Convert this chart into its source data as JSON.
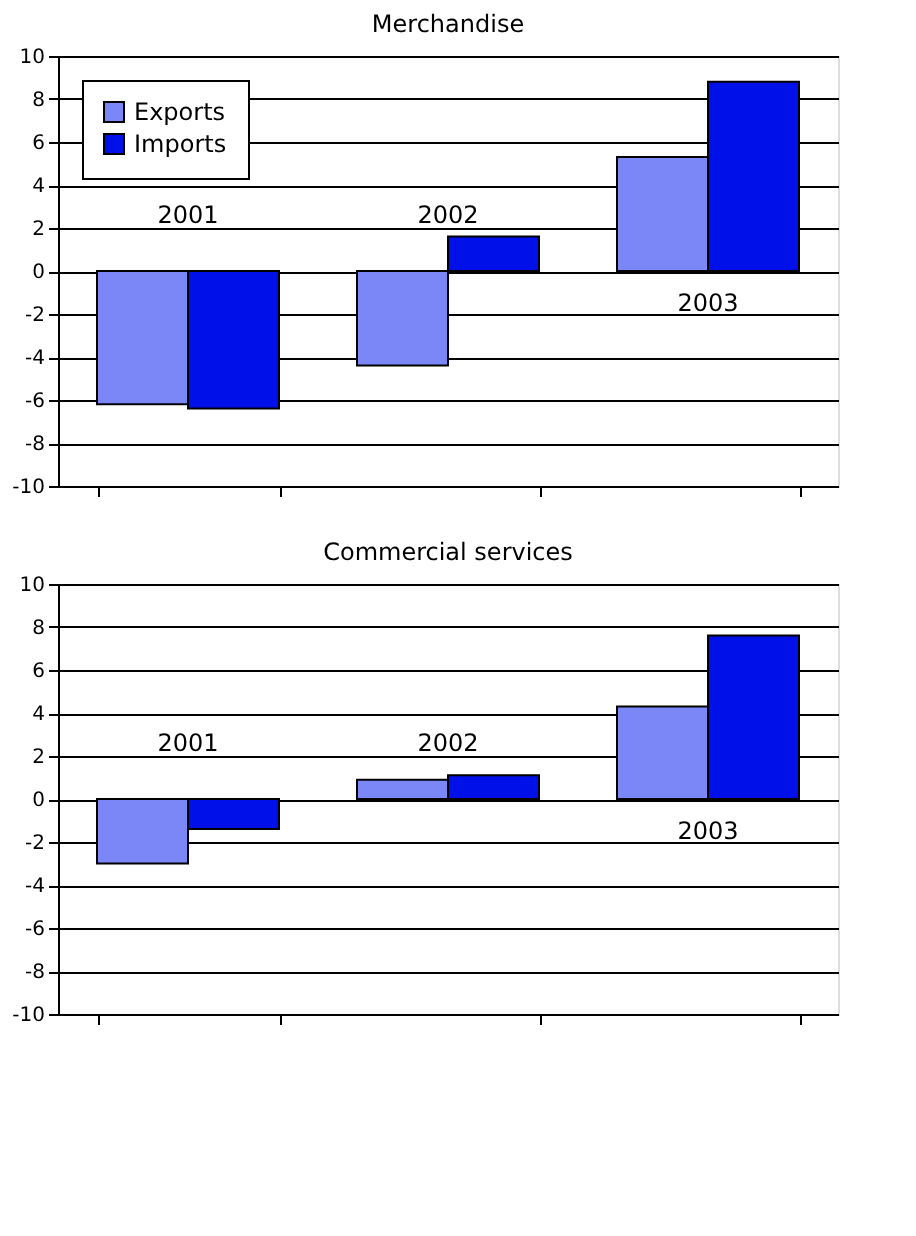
{
  "chart_data": [
    {
      "type": "bar",
      "title": "Merchandise",
      "categories": [
        "2001",
        "2002",
        "2003"
      ],
      "series": [
        {
          "name": "Exports",
          "color": "#7b86f7",
          "values": [
            -6.2,
            -4.4,
            5.3
          ]
        },
        {
          "name": "Imports",
          "color": "#0010e8",
          "values": [
            -6.4,
            1.6,
            8.8
          ]
        }
      ],
      "ylim": [
        -10,
        10
      ],
      "yticks": [
        -10,
        -8,
        -6,
        -4,
        -2,
        0,
        2,
        4,
        6,
        8,
        10
      ],
      "grid": "y",
      "legend": "top left"
    },
    {
      "type": "bar",
      "title": "Commercial services",
      "categories": [
        "2001",
        "2002",
        "2003"
      ],
      "series": [
        {
          "color": "#7b86f7",
          "values": [
            -3.0,
            0.9,
            4.3
          ]
        },
        {
          "color": "#0010e8",
          "values": [
            -1.4,
            1.1,
            7.6
          ]
        }
      ],
      "ylim": [
        -10,
        10
      ],
      "yticks": [
        -10,
        -8,
        -6,
        -4,
        -2,
        0,
        2,
        4,
        6,
        8,
        10
      ],
      "grid": "y"
    }
  ]
}
